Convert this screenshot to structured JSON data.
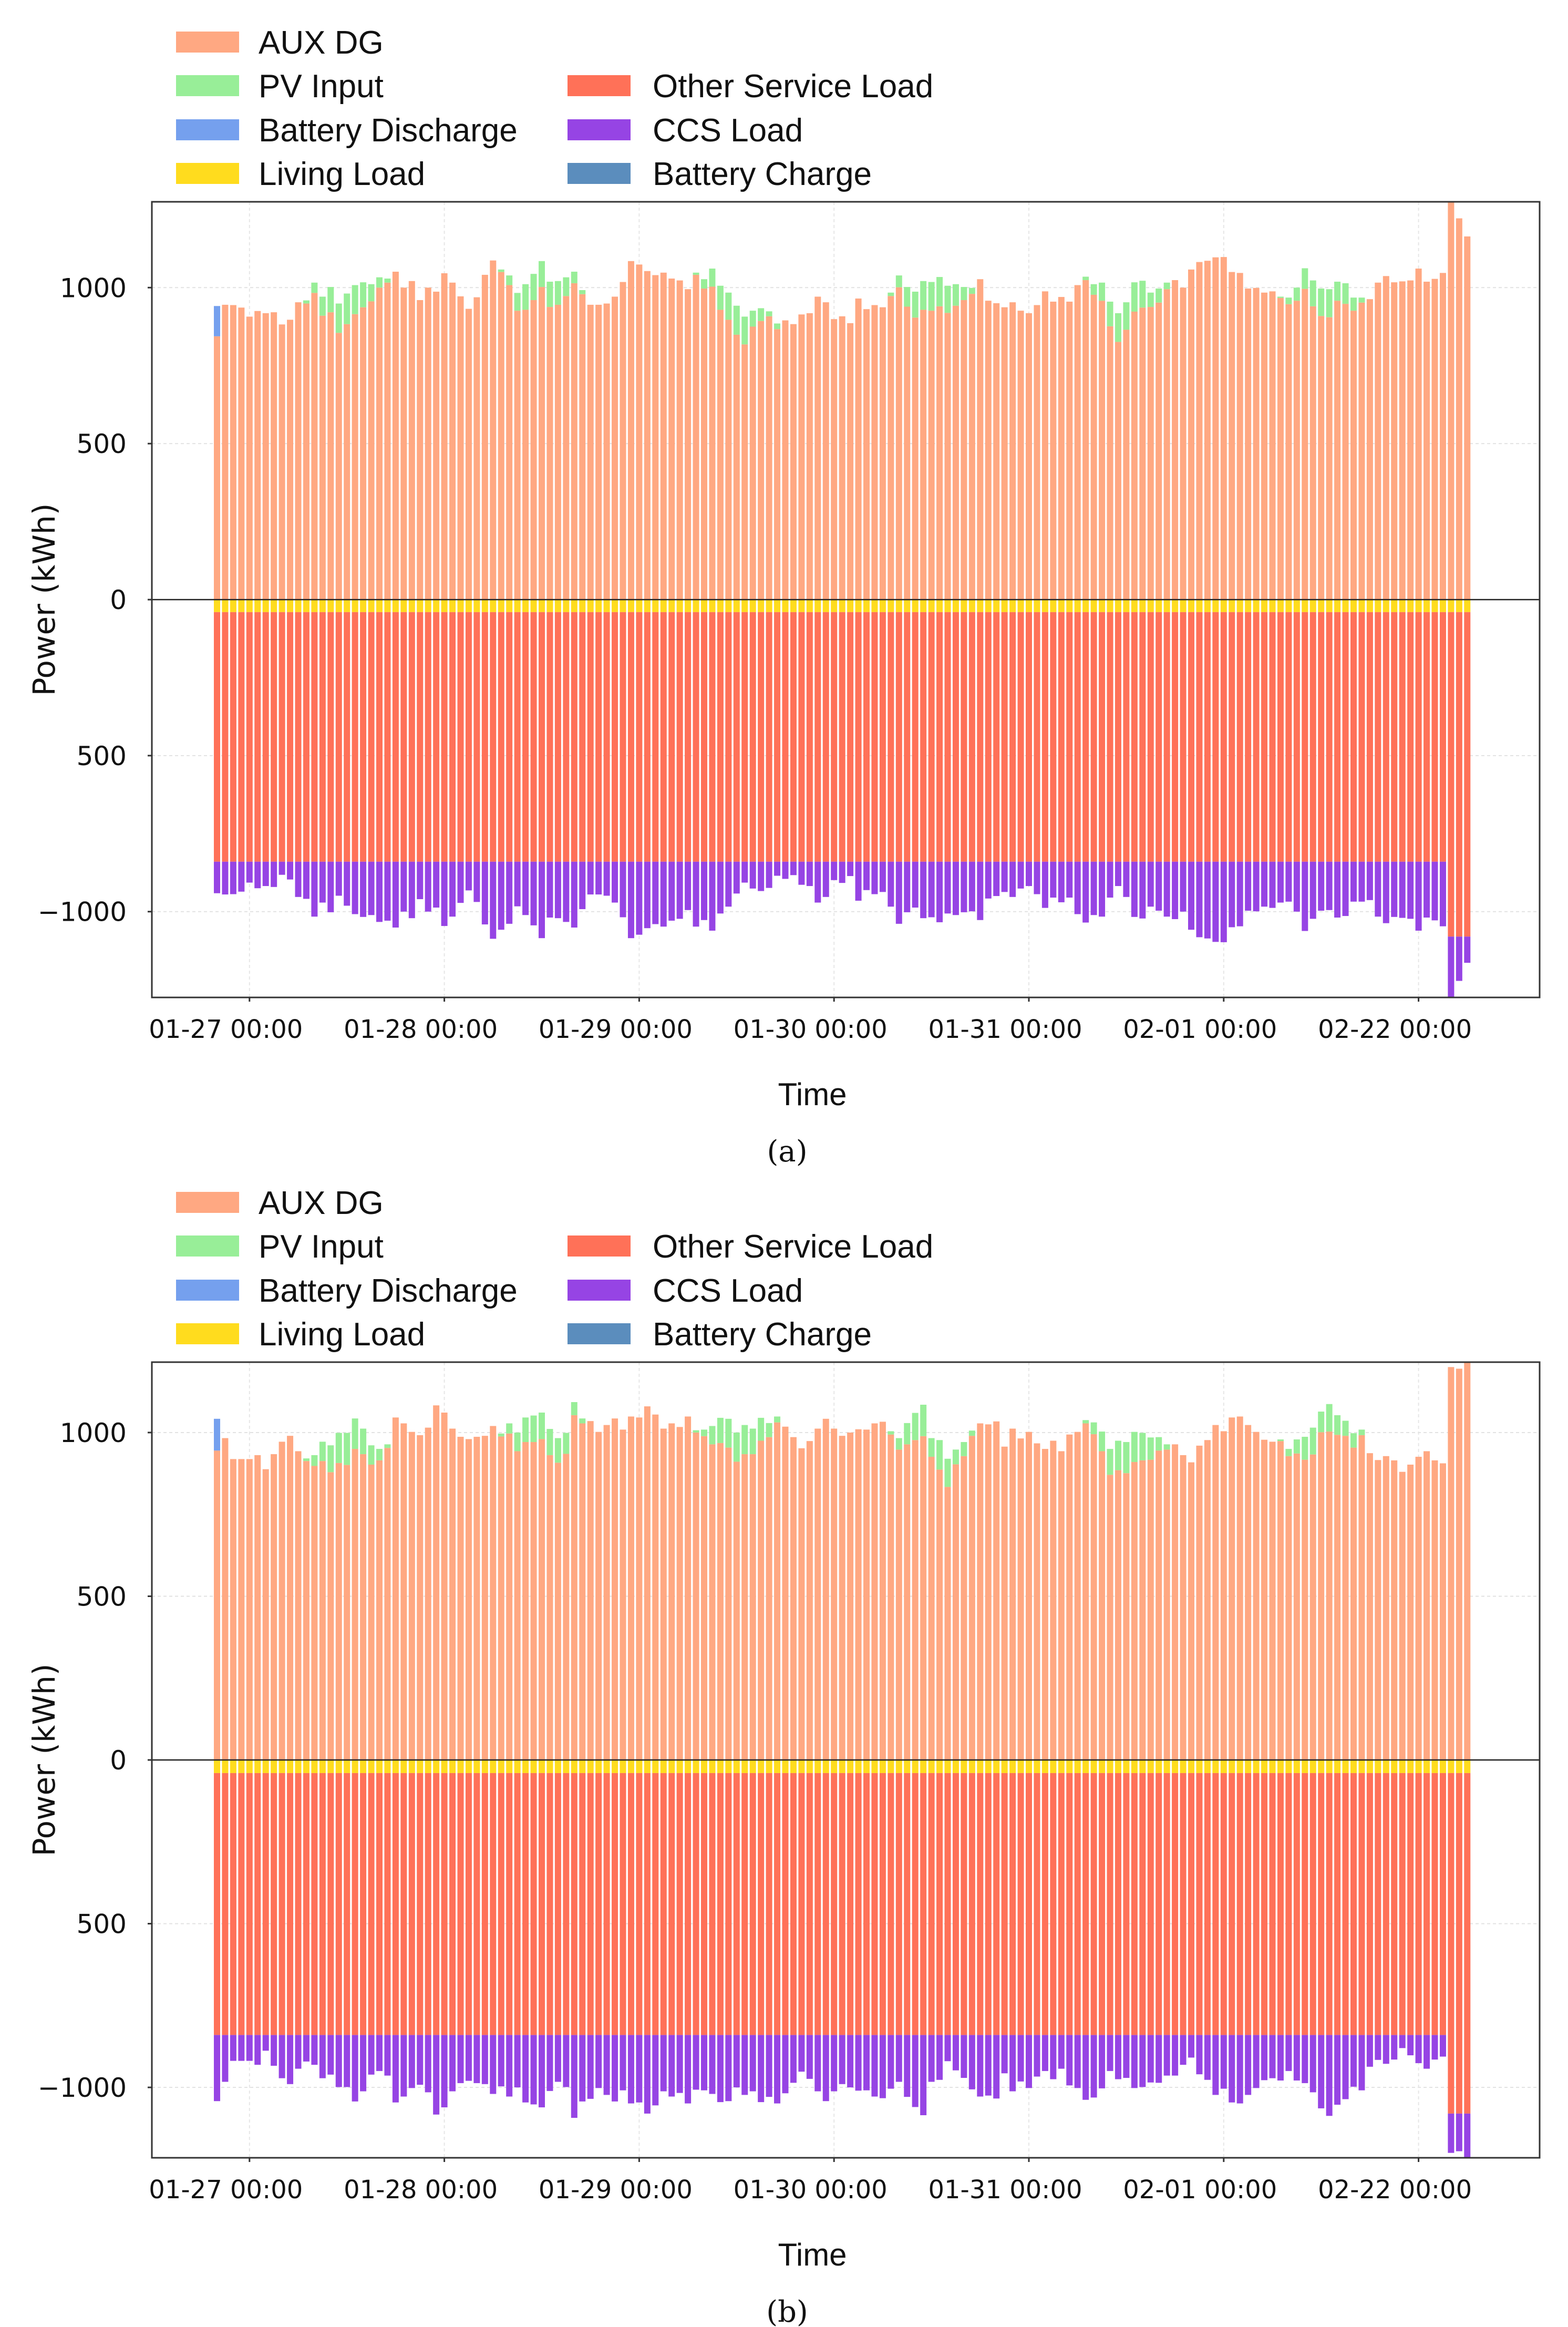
{
  "chart_data": [
    {
      "id": "a",
      "type": "bar",
      "stacked": true,
      "caption": "(a)",
      "xlabel": "Time",
      "ylabel": "Power (kWh)",
      "ylim": [
        -1275,
        1275
      ],
      "grid": true,
      "legend_position": "top-left, outside plot",
      "x_start": "01-26 20:00",
      "x_step_hours": 1,
      "n_bars": 155,
      "xticks": [
        {
          "label": "01-27 00:00",
          "bar_index": 4
        },
        {
          "label": "01-28 00:00",
          "bar_index": 28
        },
        {
          "label": "01-29 00:00",
          "bar_index": 52
        },
        {
          "label": "01-30 00:00",
          "bar_index": 76
        },
        {
          "label": "01-31 00:00",
          "bar_index": 100
        },
        {
          "label": "02-01 00:00",
          "bar_index": 124
        },
        {
          "label": "02-22 00:00",
          "bar_index": 148
        }
      ],
      "yticks": [
        {
          "value": 1000,
          "label": "1000"
        },
        {
          "value": 500,
          "label": "500"
        },
        {
          "value": 0,
          "label": "0"
        },
        {
          "value": -500,
          "label": "500"
        },
        {
          "value": -1000,
          "label": "−1000"
        }
      ],
      "legend": [
        {
          "key": "aux_dg",
          "label": "AUX DG",
          "color": "#FFA882"
        },
        {
          "key": "pv_input",
          "label": "PV Input",
          "color": "#98EE98"
        },
        {
          "key": "battery_discharge",
          "label": "Battery Discharge",
          "color": "#75A0EE"
        },
        {
          "key": "living_load",
          "label": "Living Load",
          "color": "#FFDC1E"
        },
        {
          "key": "other_service_load",
          "label": "Other Service Load",
          "color": "#FF7158"
        },
        {
          "key": "ccs_load",
          "label": "CCS Load",
          "color": "#9644E4"
        },
        {
          "key": "battery_charge",
          "label": "Battery Charge",
          "color": "#5B8DBD"
        }
      ],
      "series": {
        "aux_dg": [
          844,
          945,
          944,
          936,
          907,
          925,
          918,
          921,
          882,
          897,
          953,
          949,
          983,
          910,
          921,
          855,
          883,
          915,
          937,
          956,
          1000,
          1016,
          1051,
          1000,
          1021,
          960,
          1000,
          987,
          1046,
          1016,
          972,
          932,
          969,
          1041,
          1087,
          1050,
          1008,
          926,
          929,
          960,
          1002,
          938,
          945,
          973,
          1014,
          979,
          945,
          945,
          949,
          971,
          1018,
          1085,
          1074,
          1053,
          1040,
          1048,
          1029,
          1023,
          995,
          1041,
          997,
          1003,
          929,
          897,
          849,
          818,
          875,
          893,
          908,
          867,
          895,
          883,
          914,
          918,
          971,
          953,
          899,
          908,
          886,
          965,
          931,
          944,
          937,
          973,
          1001,
          939,
          904,
          929,
          926,
          940,
          919,
          942,
          960,
          980,
          1027,
          958,
          950,
          937,
          953,
          926,
          918,
          944,
          988,
          955,
          970,
          955,
          1008,
          1024,
          977,
          958,
          876,
          826,
          865,
          923,
          936,
          938,
          952,
          995,
          1024,
          1000,
          1058,
          1082,
          1086,
          1097,
          1098,
          1050,
          1047,
          997,
          999,
          984,
          988,
          967,
          947,
          958,
          996,
          940,
          909,
          905,
          958,
          948,
          926,
          952,
          963,
          1016,
          1037,
          1017,
          1020,
          1023,
          1061,
          1019,
          1028,
          1047,
          1280,
          1222,
          1164
        ],
        "pv_input": {
          "11": 10,
          "12": 33,
          "13": 61,
          "14": 81,
          "15": 94,
          "16": 98,
          "17": 93,
          "18": 80,
          "19": 55,
          "20": 33,
          "21": 13,
          "35": 8,
          "36": 31,
          "37": 57,
          "38": 82,
          "39": 84,
          "40": 83,
          "41": 81,
          "42": 76,
          "43": 60,
          "44": 37,
          "45": 13,
          "59": 7,
          "60": 30,
          "61": 58,
          "62": 77,
          "63": 87,
          "64": 93,
          "65": 89,
          "66": 51,
          "67": 41,
          "68": 16,
          "69": 18,
          "83": 11,
          "84": 38,
          "85": 63,
          "86": 83,
          "87": 92,
          "88": 92,
          "89": 94,
          "90": 87,
          "91": 69,
          "92": 42,
          "93": 19,
          "107": 11,
          "108": 34,
          "109": 58,
          "110": 79,
          "111": 92,
          "112": 88,
          "113": 94,
          "114": 86,
          "115": 46,
          "116": 45,
          "117": 21,
          "131": 4,
          "132": 21,
          "133": 42,
          "134": 66,
          "135": 83,
          "136": 88,
          "137": 90,
          "138": 61,
          "139": 66,
          "140": 42,
          "141": 16
        },
        "battery_discharge": {
          "0": 97
        },
        "battery_charge": {},
        "living_load": {
          "default": -40
        },
        "other_service_load": {
          "default": -800,
          "152": -1040,
          "153": -1040,
          "154": -1040
        },
        "ccs_load": [
          -101,
          -105,
          -104,
          -96,
          -67,
          -85,
          -78,
          -81,
          -42,
          -57,
          -113,
          -119,
          -176,
          -131,
          -162,
          -109,
          -141,
          -168,
          -177,
          -171,
          -193,
          -189,
          -211,
          -160,
          -181,
          -120,
          -160,
          -147,
          -206,
          -176,
          -132,
          -92,
          -129,
          -201,
          -247,
          -218,
          -199,
          -143,
          -171,
          -204,
          -245,
          -179,
          -181,
          -193,
          -211,
          -152,
          -105,
          -105,
          -109,
          -131,
          -178,
          -245,
          -234,
          -213,
          -200,
          -208,
          -189,
          -183,
          -155,
          -208,
          -187,
          -221,
          -166,
          -144,
          -102,
          -67,
          -86,
          -94,
          -84,
          -45,
          -55,
          -43,
          -74,
          -78,
          -131,
          -113,
          -59,
          -68,
          -46,
          -125,
          -91,
          -104,
          -97,
          -144,
          -199,
          -162,
          -147,
          -181,
          -178,
          -194,
          -166,
          -171,
          -162,
          -159,
          -187,
          -118,
          -110,
          -97,
          -113,
          -86,
          -78,
          -104,
          -148,
          -115,
          -130,
          -115,
          -168,
          -195,
          -171,
          -176,
          -115,
          -78,
          -113,
          -177,
          -182,
          -144,
          -157,
          -176,
          -184,
          -160,
          -218,
          -242,
          -246,
          -257,
          -258,
          -210,
          -207,
          -157,
          -159,
          -144,
          -148,
          -131,
          -128,
          -160,
          -222,
          -183,
          -157,
          -155,
          -179,
          -174,
          -128,
          -128,
          -123,
          -176,
          -197,
          -177,
          -180,
          -183,
          -221,
          -179,
          -188,
          -207,
          -200,
          -142,
          -84
        ]
      }
    },
    {
      "id": "b",
      "type": "bar",
      "stacked": true,
      "caption": "(b)",
      "xlabel": "Time",
      "ylabel": "Power (kWh)",
      "ylim": [
        -1215,
        1215
      ],
      "grid": true,
      "legend_position": "top-left, outside plot",
      "x_start": "01-26 20:00",
      "x_step_hours": 1,
      "n_bars": 155,
      "xticks": [
        {
          "label": "01-27 00:00",
          "bar_index": 4
        },
        {
          "label": "01-28 00:00",
          "bar_index": 28
        },
        {
          "label": "01-29 00:00",
          "bar_index": 52
        },
        {
          "label": "01-30 00:00",
          "bar_index": 76
        },
        {
          "label": "01-31 00:00",
          "bar_index": 100
        },
        {
          "label": "02-01 00:00",
          "bar_index": 124
        },
        {
          "label": "02-22 00:00",
          "bar_index": 148
        }
      ],
      "yticks": [
        {
          "value": 1000,
          "label": "1000"
        },
        {
          "value": 500,
          "label": "500"
        },
        {
          "value": 0,
          "label": "0"
        },
        {
          "value": -500,
          "label": "500"
        },
        {
          "value": -1000,
          "label": "−1000"
        }
      ],
      "legend": [
        {
          "key": "aux_dg",
          "label": "AUX DG",
          "color": "#FFA882"
        },
        {
          "key": "pv_input",
          "label": "PV Input",
          "color": "#98EE98"
        },
        {
          "key": "battery_discharge",
          "label": "Battery Discharge",
          "color": "#75A0EE"
        },
        {
          "key": "living_load",
          "label": "Living Load",
          "color": "#FFDC1E"
        },
        {
          "key": "other_service_load",
          "label": "Other Service Load",
          "color": "#FF7158"
        },
        {
          "key": "ccs_load",
          "label": "CCS Load",
          "color": "#9644E4"
        },
        {
          "key": "battery_charge",
          "label": "Battery Charge",
          "color": "#5B8DBD"
        }
      ],
      "series": {
        "aux_dg": [
          945,
          983,
          919,
          919,
          919,
          931,
          888,
          934,
          972,
          990,
          943,
          913,
          898,
          913,
          879,
          907,
          901,
          950,
          934,
          902,
          915,
          953,
          1046,
          1028,
          1002,
          992,
          1015,
          1083,
          1061,
          1012,
          987,
          980,
          987,
          990,
          1020,
          988,
          997,
          943,
          971,
          971,
          980,
          931,
          908,
          935,
          1053,
          1028,
          1035,
          1002,
          1023,
          1043,
          1009,
          1049,
          1046,
          1080,
          1055,
          1012,
          1028,
          1017,
          1049,
          1000,
          989,
          964,
          968,
          954,
          911,
          934,
          934,
          975,
          986,
          1031,
          1018,
          986,
          952,
          974,
          1012,
          1042,
          1012,
          990,
          1000,
          1010,
          1009,
          1028,
          1033,
          994,
          948,
          964,
          977,
          989,
          926,
          887,
          834,
          903,
          928,
          990,
          1028,
          1025,
          1034,
          957,
          1012,
          982,
          1002,
          967,
          950,
          975,
          943,
          994,
          1002,
          1028,
          995,
          943,
          871,
          885,
          876,
          910,
          915,
          917,
          945,
          948,
          964,
          931,
          909,
          960,
          977,
          1023,
          1004,
          1046,
          1049,
          1023,
          1002,
          978,
          972,
          974,
          928,
          936,
          917,
          933,
          1001,
          1003,
          993,
          990,
          954,
          992,
          937,
          916,
          928,
          915,
          880,
          902,
          926,
          943,
          915,
          906,
          1200,
          1195,
          1215
        ],
        "pv_input": {
          "11": 8,
          "12": 33,
          "13": 59,
          "14": 82,
          "15": 92,
          "16": 98,
          "17": 93,
          "18": 78,
          "19": 59,
          "20": 35,
          "21": 11,
          "35": 9,
          "36": 31,
          "37": 57,
          "38": 75,
          "39": 81,
          "40": 81,
          "41": 80,
          "42": 75,
          "43": 64,
          "44": 40,
          "45": 15,
          "59": 7,
          "60": 20,
          "61": 56,
          "62": 77,
          "63": 88,
          "64": 89,
          "65": 89,
          "66": 78,
          "67": 70,
          "68": 43,
          "69": 18,
          "83": 10,
          "84": 35,
          "85": 65,
          "86": 83,
          "87": 96,
          "88": 57,
          "89": 90,
          "90": 86,
          "91": 45,
          "92": 43,
          "93": 16,
          "107": 10,
          "108": 36,
          "109": 60,
          "110": 79,
          "111": 90,
          "112": 95,
          "113": 92,
          "114": 84,
          "115": 68,
          "116": 41,
          "117": 16,
          "131": 5,
          "132": 22,
          "133": 43,
          "134": 70,
          "135": 82,
          "136": 63,
          "137": 84,
          "138": 60,
          "139": 46,
          "140": 44,
          "141": 17
        },
        "battery_discharge": {
          "0": 97
        },
        "battery_charge": {},
        "living_load": {
          "default": -40
        },
        "other_service_load": {
          "default": -800,
          "152": -1040,
          "153": -1040,
          "154": -1040
        },
        "ccs_load": [
          -202,
          -143,
          -79,
          -79,
          -79,
          -91,
          -48,
          -94,
          -132,
          -150,
          -103,
          -81,
          -91,
          -132,
          -121,
          -159,
          -159,
          -203,
          -172,
          -121,
          -110,
          -124,
          -206,
          -188,
          -162,
          -152,
          -175,
          -243,
          -221,
          -172,
          -147,
          -140,
          -147,
          -150,
          -180,
          -157,
          -188,
          -160,
          -206,
          -212,
          -221,
          -171,
          -143,
          -159,
          -253,
          -203,
          -195,
          -162,
          -183,
          -203,
          -169,
          -209,
          -206,
          -240,
          -215,
          -172,
          -188,
          -177,
          -209,
          -167,
          -169,
          -180,
          -205,
          -202,
          -160,
          -183,
          -172,
          -205,
          -189,
          -209,
          -178,
          -146,
          -112,
          -134,
          -172,
          -202,
          -172,
          -150,
          -160,
          -170,
          -169,
          -188,
          -193,
          -164,
          -143,
          -189,
          -220,
          -245,
          -143,
          -137,
          -80,
          -108,
          -131,
          -166,
          -188,
          -185,
          -194,
          -117,
          -172,
          -142,
          -162,
          -127,
          -110,
          -135,
          -103,
          -154,
          -162,
          -198,
          -191,
          -163,
          -110,
          -135,
          -131,
          -162,
          -159,
          -145,
          -146,
          -124,
          -124,
          -91,
          -69,
          -120,
          -137,
          -183,
          -164,
          -206,
          -209,
          -183,
          -162,
          -138,
          -132,
          -139,
          -110,
          -139,
          -147,
          -175,
          -224,
          -247,
          -213,
          -196,
          -158,
          -169,
          -97,
          -76,
          -88,
          -75,
          -40,
          -62,
          -86,
          -103,
          -75,
          -66,
          -120,
          -115,
          -135
        ]
      }
    }
  ]
}
